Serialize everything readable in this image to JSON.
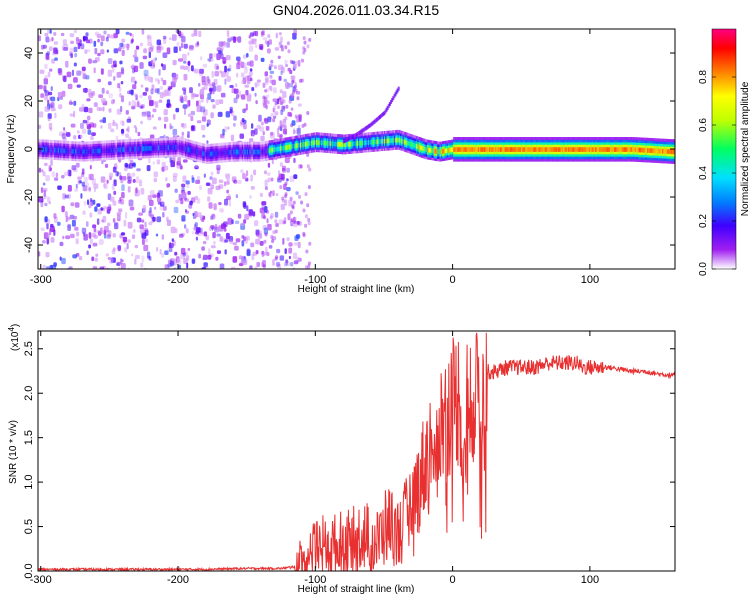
{
  "page": {
    "title": "GN04.2026.011.03.34.R15"
  },
  "chart_data": [
    {
      "type": "heatmap",
      "title": "GN04.2026.011.03.34.R15",
      "xlabel": "Height of straight line (km)",
      "ylabel": "Frequency (Hz)",
      "xlim": [
        -302,
        162
      ],
      "ylim": [
        -50,
        50
      ],
      "xticks": [
        -300,
        -200,
        -100,
        0,
        100
      ],
      "xtick_labels": [
        "-300",
        "-200",
        "-100",
        "0",
        "100"
      ],
      "yticks": [
        -40,
        -20,
        0,
        20,
        40
      ],
      "ytick_labels": [
        "-40",
        "-20",
        "0",
        "20",
        "40"
      ],
      "ridge": {
        "x": [
          -300,
          -270,
          -240,
          -200,
          -180,
          -160,
          -140,
          -120,
          -100,
          -80,
          -60,
          -40,
          -30,
          -20,
          -10,
          0,
          20,
          50,
          80,
          100,
          130,
          162
        ],
        "y": [
          0,
          -1,
          0,
          1,
          -2,
          -1,
          -1,
          1,
          3,
          2,
          3,
          4,
          2,
          0,
          -1,
          0,
          0,
          0,
          0,
          0,
          0,
          -1
        ]
      },
      "branch": {
        "x": [
          -80,
          -70,
          -60,
          -50,
          -45,
          -40
        ],
        "y": [
          3,
          6,
          10,
          15,
          20,
          25
        ]
      },
      "colorbar": {
        "label": "Normalized spectral amplitude",
        "range": [
          0,
          1
        ],
        "ticks": [
          0.0,
          0.2,
          0.4,
          0.6,
          0.8
        ],
        "tick_labels": [
          "0.0",
          "0.2",
          "0.4",
          "0.6",
          "0.8"
        ],
        "colormap": [
          "#ffffff",
          "#a020f0",
          "#4000ff",
          "#0080ff",
          "#00e0ff",
          "#00ff60",
          "#c0ff00",
          "#ffff00",
          "#ff8000",
          "#ff0000",
          "#ff0080"
        ]
      }
    },
    {
      "type": "line",
      "title": "",
      "xlabel": "Height of straight line (km)",
      "ylabel": "SNR (10 * v/v)",
      "scale_label": "(x10",
      "scale_exp": "4",
      "scale_close": ")",
      "xlim": [
        -302,
        162
      ],
      "ylim": [
        0,
        2.7
      ],
      "xticks": [
        -300,
        -200,
        -100,
        0,
        100
      ],
      "xtick_labels": [
        "-300",
        "-200",
        "-100",
        "0",
        "100"
      ],
      "yticks": [
        0.0,
        0.5,
        1.0,
        1.5,
        2.0,
        2.5
      ],
      "ytick_labels": [
        "0.0",
        "0.5",
        "1.0",
        "1.5",
        "2.0",
        "2.5"
      ],
      "series": [
        {
          "name": "SNR",
          "color": "#e83030",
          "x": [
            -302,
            -280,
            -250,
            -220,
            -200,
            -180,
            -150,
            -140,
            -125,
            -115,
            -110,
            -105,
            -100,
            -95,
            -90,
            -85,
            -80,
            -75,
            -70,
            -65,
            -60,
            -55,
            -50,
            -45,
            -40,
            -35,
            -30,
            -25,
            -20,
            -15,
            -10,
            -5,
            0,
            5,
            10,
            15,
            20,
            25,
            30,
            40,
            50,
            60,
            70,
            80,
            90,
            95,
            100,
            110,
            120,
            130,
            140,
            150,
            162
          ],
          "y": [
            0.02,
            0.02,
            0.02,
            0.02,
            0.02,
            0.02,
            0.03,
            0.03,
            0.03,
            0.05,
            0.1,
            0.15,
            0.25,
            0.3,
            0.3,
            0.32,
            0.35,
            0.35,
            0.4,
            0.45,
            0.4,
            0.35,
            0.5,
            0.6,
            0.45,
            0.6,
            0.8,
            1.0,
            1.3,
            1.5,
            1.7,
            1.8,
            2.0,
            2.05,
            1.5,
            2.1,
            2.2,
            2.25,
            2.25,
            2.3,
            2.3,
            2.3,
            2.35,
            2.35,
            2.35,
            2.3,
            2.3,
            2.3,
            2.28,
            2.25,
            2.25,
            2.22,
            2.2
          ]
        }
      ]
    }
  ]
}
